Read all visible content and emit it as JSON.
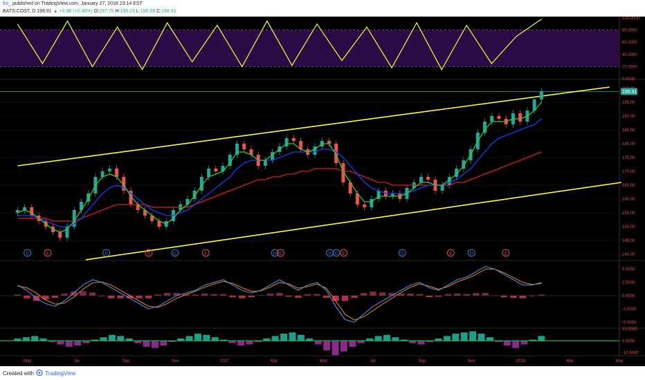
{
  "header": {
    "username": "fro_",
    "published": "published on TradingView.com, January 27, 2018 23:14 EST",
    "symbol": "BATS:COST, D",
    "last": "198.91",
    "change": "▲ +0.96 (+0.48%)",
    "o_label": "O:",
    "o_value": "197.75",
    "h_label": "H:",
    "h_value": "199.23",
    "l_label": "L:",
    "l_value": "195.69",
    "c_label": "C:",
    "c_value": "198.91"
  },
  "footer": {
    "created_with": "Created with",
    "brand": "TradingView"
  },
  "colors": {
    "background": "#000000",
    "candle_up": "#26a69a",
    "candle_down": "#ef5350",
    "sma_short": "#32cd32",
    "sma_mid": "#1e3cff",
    "sma_long": "#dc1e1e",
    "channel": "#ffff33",
    "rsi_line": "#ffff33",
    "rsi_band": "#2c0a46",
    "macd_line": "#4a90e2",
    "macd_signal": "#e67e22",
    "price_tag": "#26a69a"
  },
  "chart_data": [
    {
      "type": "line",
      "name": "stochastic-rsi",
      "y_ticks": [
        "100.0000",
        "80.0000",
        "60.0000",
        "40.0000",
        "20.0000",
        "0.0000"
      ],
      "ylim": [
        0,
        100
      ],
      "band": [
        20,
        80
      ],
      "x": [
        "2016-04",
        "2016-05",
        "2016-06",
        "2016-07",
        "2016-08",
        "2016-09",
        "2016-10",
        "2016-11",
        "2016-12",
        "2017-01",
        "2017-02",
        "2017-03",
        "2017-04",
        "2017-05",
        "2017-06",
        "2017-07",
        "2017-08",
        "2017-09",
        "2017-10",
        "2017-11",
        "2017-12",
        "2018-01"
      ],
      "values": [
        90,
        25,
        95,
        20,
        85,
        15,
        92,
        28,
        88,
        20,
        95,
        22,
        90,
        30,
        85,
        18,
        92,
        15,
        88,
        25,
        70,
        98
      ]
    },
    {
      "type": "candlestick",
      "name": "price",
      "y_ticks": [
        "200.00",
        "195.00",
        "190.00",
        "185.00",
        "180.00",
        "175.00",
        "170.00",
        "165.00",
        "160.00",
        "155.00",
        "150.00",
        "145.00",
        "140.00"
      ],
      "ylim": [
        138,
        203
      ],
      "last_price_label": "198.91",
      "x_ticks": [
        "May",
        "Jul",
        "Sep",
        "Nov",
        "2017",
        "Mar",
        "May",
        "Jul",
        "Sep",
        "Nov",
        "2018",
        "Mar",
        "May"
      ],
      "x_tick_values": [
        "2016-05",
        "2016-07",
        "2016-09",
        "2016-11",
        "2017-01",
        "2017-03",
        "2017-05",
        "2017-07",
        "2017-09",
        "2017-11",
        "2018-01",
        "2018-03",
        "2018-05"
      ],
      "xlim": [
        "2016-04",
        "2018-05"
      ],
      "closes": [
        156,
        157,
        154,
        152,
        150,
        148,
        146,
        150,
        156,
        159,
        162,
        168,
        170,
        171,
        168,
        163,
        158,
        156,
        154,
        152,
        150,
        152,
        156,
        158,
        160,
        163,
        168,
        171,
        170,
        172,
        176,
        180,
        178,
        176,
        172,
        174,
        177,
        179,
        182,
        181,
        178,
        176,
        179,
        181,
        180,
        173,
        166,
        162,
        158,
        157,
        160,
        163,
        161,
        162,
        160,
        164,
        166,
        168,
        167,
        163,
        165,
        168,
        171,
        174,
        178,
        184,
        188,
        190,
        189,
        187,
        191,
        188,
        192,
        196,
        199
      ],
      "sma_short": [
        155,
        156,
        155,
        153,
        151,
        149,
        148,
        149,
        152,
        156,
        160,
        165,
        168,
        169,
        168,
        165,
        161,
        158,
        156,
        154,
        152,
        151,
        153,
        156,
        158,
        161,
        165,
        168,
        169,
        170,
        173,
        177,
        177,
        176,
        174,
        174,
        176,
        178,
        180,
        180,
        178,
        177,
        178,
        180,
        180,
        176,
        170,
        166,
        162,
        159,
        159,
        161,
        161,
        161,
        161,
        162,
        164,
        166,
        166,
        165,
        165,
        167,
        169,
        172,
        176,
        181,
        185,
        188,
        188,
        188,
        189,
        189,
        190,
        192,
        195
      ],
      "sma_mid": [
        154,
        154,
        154,
        153,
        152,
        151,
        150,
        150,
        151,
        153,
        156,
        159,
        162,
        164,
        165,
        164,
        162,
        160,
        158,
        156,
        155,
        154,
        154,
        155,
        156,
        158,
        160,
        162,
        164,
        166,
        168,
        171,
        173,
        174,
        174,
        174,
        174,
        175,
        176,
        177,
        177,
        177,
        177,
        178,
        178,
        177,
        175,
        172,
        169,
        166,
        164,
        163,
        162,
        162,
        162,
        162,
        163,
        164,
        165,
        165,
        165,
        166,
        167,
        169,
        171,
        174,
        177,
        180,
        182,
        183,
        184,
        185,
        186,
        187,
        189
      ],
      "sma_long": [
        153,
        153,
        153,
        153,
        153,
        152,
        152,
        152,
        152,
        153,
        154,
        155,
        156,
        157,
        158,
        158,
        158,
        158,
        158,
        157,
        157,
        157,
        157,
        157,
        157,
        158,
        159,
        160,
        161,
        162,
        163,
        164,
        165,
        166,
        167,
        167,
        168,
        168,
        169,
        169,
        170,
        170,
        171,
        171,
        171,
        171,
        170,
        170,
        169,
        168,
        167,
        166,
        166,
        165,
        165,
        165,
        165,
        165,
        165,
        165,
        165,
        165,
        166,
        166,
        167,
        168,
        169,
        170,
        171,
        172,
        173,
        174,
        175,
        176,
        177
      ],
      "channel_upper": [
        [
          2016.3,
          172
        ],
        [
          2018.3,
          200.5
        ]
      ],
      "channel_lower": [
        [
          2016.53,
          138
        ],
        [
          2018.34,
          166
        ]
      ],
      "events": [
        {
          "label": "D",
          "date": "2016-05-01",
          "kind": "dividend"
        },
        {
          "label": "E",
          "date": "2016-05-26",
          "kind": "earnings"
        },
        {
          "label": "D",
          "date": "2016-08-07",
          "kind": "dividend"
        },
        {
          "label": "E",
          "date": "2016-09-29",
          "kind": "earnings"
        },
        {
          "label": "D",
          "date": "2016-10-31",
          "kind": "dividend"
        },
        {
          "label": "E",
          "date": "2016-12-08",
          "kind": "earnings"
        },
        {
          "label": "D",
          "date": "2017-03-02",
          "kind": "dividend"
        },
        {
          "label": "E",
          "date": "2017-03-09",
          "kind": "earnings"
        },
        {
          "label": "D",
          "date": "2017-05-09",
          "kind": "dividend"
        },
        {
          "label": "D",
          "date": "2017-05-17",
          "kind": "dividend"
        },
        {
          "label": "E",
          "date": "2017-05-26",
          "kind": "earnings"
        },
        {
          "label": "D",
          "date": "2017-08-07",
          "kind": "dividend"
        },
        {
          "label": "E",
          "date": "2017-10-06",
          "kind": "earnings"
        },
        {
          "label": "D",
          "date": "2017-11-01",
          "kind": "dividend"
        },
        {
          "label": "E",
          "date": "2017-12-13",
          "kind": "earnings"
        }
      ]
    },
    {
      "type": "line",
      "name": "macd",
      "y_ticks": [
        "5.0000",
        "2.5000",
        "0.0000",
        "-2.5000",
        "-5.0000"
      ],
      "ylim": [
        -6,
        6.5
      ],
      "macd": [
        2.0,
        1.0,
        -0.5,
        -1.5,
        -2.0,
        -1.0,
        0.5,
        2.0,
        3.0,
        2.5,
        1.5,
        0.5,
        -0.5,
        -1.5,
        -2.5,
        -2.0,
        -1.0,
        0.0,
        0.5,
        1.0,
        2.0,
        2.5,
        3.0,
        2.0,
        1.0,
        0.5,
        1.0,
        2.0,
        3.0,
        2.0,
        1.0,
        2.0,
        2.5,
        1.0,
        -2.0,
        -4.5,
        -5.0,
        -3.5,
        -2.0,
        -1.0,
        0.0,
        1.0,
        2.0,
        2.5,
        1.5,
        1.0,
        2.0,
        3.0,
        3.5,
        4.5,
        5.5,
        5.0,
        4.0,
        3.0,
        2.0,
        2.0,
        2.5
      ],
      "signal": [
        1.8,
        1.5,
        0.5,
        -0.8,
        -1.6,
        -1.4,
        -0.3,
        1.2,
        2.4,
        2.6,
        2.0,
        1.0,
        0.0,
        -1.0,
        -2.0,
        -2.2,
        -1.5,
        -0.5,
        0.2,
        0.8,
        1.6,
        2.2,
        2.7,
        2.3,
        1.5,
        0.8,
        0.9,
        1.6,
        2.5,
        2.2,
        1.4,
        1.7,
        2.2,
        1.4,
        -1.0,
        -3.5,
        -4.6,
        -4.0,
        -2.8,
        -1.6,
        -0.5,
        0.6,
        1.6,
        2.2,
        1.8,
        1.2,
        1.7,
        2.6,
        3.2,
        4.0,
        5.0,
        5.0,
        4.3,
        3.4,
        2.5,
        2.1,
        2.3
      ],
      "histogram": [
        0.2,
        -0.5,
        -1.0,
        -0.7,
        -0.4,
        0.4,
        0.8,
        0.8,
        0.6,
        -0.1,
        -0.5,
        -0.5,
        -0.5,
        -0.5,
        -0.5,
        0.2,
        0.5,
        0.5,
        0.3,
        0.2,
        0.4,
        0.3,
        0.3,
        -0.3,
        -0.5,
        -0.3,
        0.1,
        0.4,
        0.5,
        -0.2,
        -0.4,
        0.3,
        0.3,
        -0.4,
        -1.0,
        -1.0,
        -0.4,
        0.5,
        0.8,
        0.6,
        0.5,
        0.4,
        0.4,
        0.3,
        -0.3,
        -0.2,
        0.3,
        0.4,
        0.3,
        0.5,
        0.5,
        0.0,
        -0.3,
        -0.4,
        -0.5,
        -0.1,
        0.2
      ]
    },
    {
      "type": "bar",
      "name": "oscillator-histogram",
      "y_ticks": [
        "10.0000",
        "0.0000",
        "-10.0000"
      ],
      "ylim": [
        -12,
        10
      ],
      "values": [
        2,
        3,
        4,
        2,
        -1,
        -3,
        -5,
        -4,
        -2,
        1,
        3,
        5,
        4,
        2,
        -2,
        -5,
        -6,
        -4,
        -1,
        2,
        4,
        6,
        5,
        3,
        1,
        -2,
        -4,
        -3,
        -1,
        2,
        4,
        6,
        7,
        5,
        2,
        -3,
        -8,
        -12,
        -9,
        -5,
        -2,
        2,
        4,
        5,
        3,
        1,
        -2,
        -3,
        -1,
        2,
        4,
        6,
        7,
        8,
        6,
        3,
        -1,
        -4,
        -6,
        -3,
        1,
        4
      ]
    }
  ]
}
